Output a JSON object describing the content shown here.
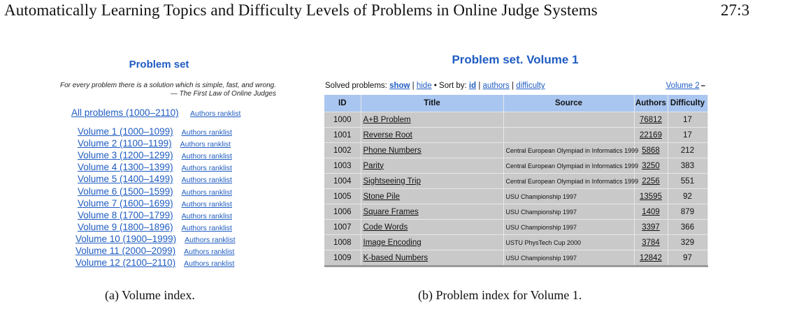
{
  "header": {
    "title": "Automatically Learning Topics and Difficulty Levels of Problems in Online Judge Systems",
    "page_number": "27:3"
  },
  "left_panel": {
    "title": "Problem set",
    "quote_line1": "For every problem there is a solution which is simple, fast, and wrong.",
    "quote_line2": "— The First Law of Online Judges",
    "all_problems": "All problems (1000–2110)",
    "authors_ranklist": "Authors ranklist",
    "volumes": [
      "Volume 1 (1000–1099)",
      "Volume 2 (1100–1199)",
      "Volume 3 (1200–1299)",
      "Volume 4 (1300–1399)",
      "Volume 5 (1400–1499)",
      "Volume 6 (1500–1599)",
      "Volume 7 (1600–1699)",
      "Volume 8 (1700–1799)",
      "Volume 9 (1800–1896)",
      "Volume 10 (1900–1999)",
      "Volume 11 (2000–2099)",
      "Volume 12 (2100–2110)"
    ]
  },
  "right_panel": {
    "title": "Problem set. Volume 1",
    "toolbar": {
      "solved_label": "Solved problems:",
      "show": "show",
      "sep1": "|",
      "hide": "hide",
      "bullet": "•",
      "sort_label": "Sort by:",
      "id": "id",
      "sep2": "|",
      "authors": "authors",
      "sep3": "|",
      "difficulty": "difficulty"
    },
    "next_volume": "Volume 2",
    "next_volume_dash": "–",
    "columns": [
      "ID",
      "Title",
      "Source",
      "Authors",
      "Difficulty"
    ],
    "rows": [
      {
        "id": "1000",
        "title": "A+B Problem",
        "source": "",
        "authors": "76812",
        "difficulty": "17"
      },
      {
        "id": "1001",
        "title": "Reverse Root",
        "source": "",
        "authors": "22169",
        "difficulty": "17"
      },
      {
        "id": "1002",
        "title": "Phone Numbers",
        "source": "Central European Olympiad in Informatics 1999",
        "authors": "5868",
        "difficulty": "212"
      },
      {
        "id": "1003",
        "title": "Parity",
        "source": "Central European Olympiad in Informatics 1999",
        "authors": "3250",
        "difficulty": "383"
      },
      {
        "id": "1004",
        "title": "Sightseeing Trip",
        "source": "Central European Olympiad in Informatics 1999",
        "authors": "2256",
        "difficulty": "551"
      },
      {
        "id": "1005",
        "title": "Stone Pile",
        "source": "USU Championship 1997",
        "authors": "13595",
        "difficulty": "92"
      },
      {
        "id": "1006",
        "title": "Square Frames",
        "source": "USU Championship 1997",
        "authors": "1409",
        "difficulty": "879"
      },
      {
        "id": "1007",
        "title": "Code Words",
        "source": "USU Championship 1997",
        "authors": "3397",
        "difficulty": "366"
      },
      {
        "id": "1008",
        "title": "Image Encoding",
        "source": "USTU PhysTech Cup 2000",
        "authors": "3784",
        "difficulty": "329"
      },
      {
        "id": "1009",
        "title": "K-based Numbers",
        "source": "USU Championship 1997",
        "authors": "12842",
        "difficulty": "97"
      }
    ]
  },
  "captions": {
    "a": "(a)  Volume index.",
    "b": "(b)  Problem index for Volume 1."
  },
  "colors": {
    "link": "#1f5cc2",
    "header_bg": "#a9c6f0",
    "row_bg": "#c9c9c9"
  }
}
